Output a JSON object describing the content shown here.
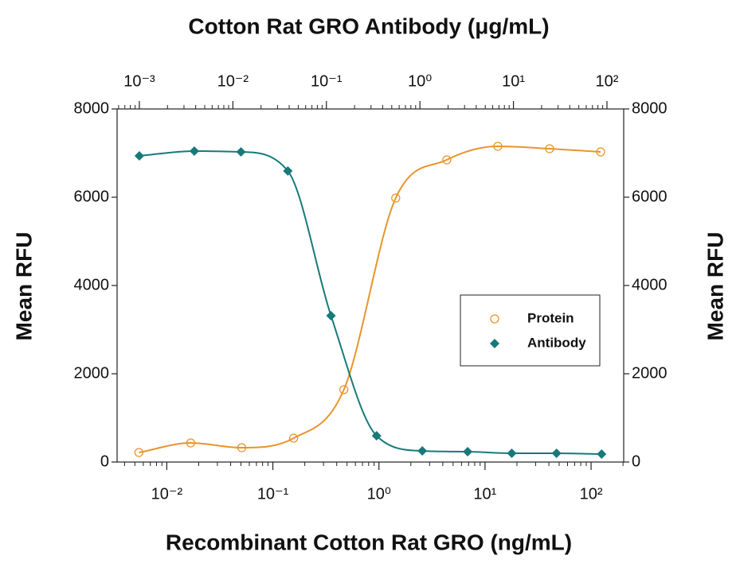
{
  "chart_data": {
    "type": "line",
    "title": "Cotton Rat GRO Antibody (μg/mL)",
    "xlabel": "Recombinant Cotton Rat GRO (ng/mL)",
    "ylabel": "Mean RFU",
    "y2label": "Mean RFU",
    "xscale": "log",
    "x2scale": "log",
    "xlim": [
      0.0034,
      203
    ],
    "xticks": [
      {
        "value": 0.01,
        "label": "10⁻²"
      },
      {
        "value": 0.1,
        "label": "10⁻¹"
      },
      {
        "value": 1,
        "label": "10⁰"
      },
      {
        "value": 10,
        "label": "10¹"
      },
      {
        "value": 100,
        "label": "10²"
      }
    ],
    "x2lim": [
      0.000578,
      151
    ],
    "x2ticks": [
      {
        "value": 0.001,
        "label": "10⁻³"
      },
      {
        "value": 0.01,
        "label": "10⁻²"
      },
      {
        "value": 0.1,
        "label": "10⁻¹"
      },
      {
        "value": 1,
        "label": "10⁰"
      },
      {
        "value": 10,
        "label": "10¹"
      },
      {
        "value": 100,
        "label": "10²"
      }
    ],
    "ylim": [
      0,
      8000
    ],
    "yticks": [
      0,
      2000,
      4000,
      6000,
      8000
    ],
    "y2lim": [
      0,
      8000
    ],
    "y2ticks": [
      0,
      2000,
      4000,
      6000,
      8000
    ],
    "legend": "right",
    "series": [
      {
        "name": "Protein",
        "color": "#e8952a",
        "marker": "open-circle",
        "axis": "x",
        "x": [
          0.00546,
          0.0168,
          0.0509,
          0.157,
          0.467,
          1.44,
          4.36,
          13.2,
          40.6,
          123
        ],
        "values": [
          216,
          432,
          324,
          541,
          1640,
          5982,
          6847,
          7153,
          7099,
          7027
        ]
      },
      {
        "name": "Antibody",
        "color": "#17797a",
        "marker": "diamond",
        "axis": "x2",
        "x": [
          0.001,
          0.00387,
          0.0122,
          0.0387,
          0.112,
          0.344,
          1.06,
          3.24,
          9.6,
          28.9,
          87.6
        ],
        "values": [
          6937,
          7045,
          7027,
          6595,
          3315,
          595,
          252,
          234,
          198,
          198,
          180
        ]
      }
    ]
  }
}
